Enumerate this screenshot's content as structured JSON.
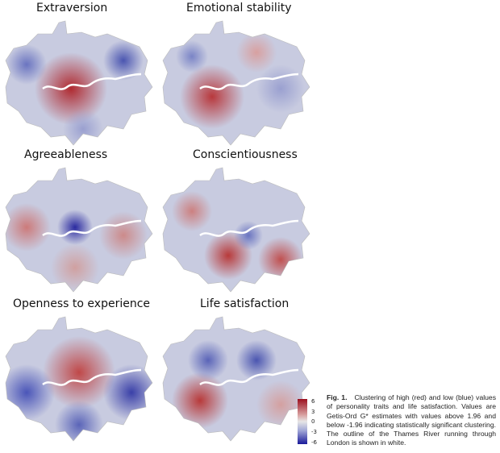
{
  "maps": [
    {
      "title": "Extraversion"
    },
    {
      "title": "Emotional stability"
    },
    {
      "title": "Agreeableness"
    },
    {
      "title": "Conscientiousness"
    },
    {
      "title": "Openness to experience"
    },
    {
      "title": "Life satisfaction"
    }
  ],
  "legend": {
    "ticks": [
      "6",
      "3",
      "0",
      "-3",
      "-6"
    ],
    "colors": {
      "high": "#9b0f1e",
      "mid": "#e6e6e6",
      "low": "#1a1a9a"
    }
  },
  "caption": {
    "label": "Fig. 1.",
    "text": "Clustering of high (red) and low (blue) values of personality traits and life satisfaction. Values are Getis-Ord G* estimates with values above 1.96 and below -1.96 indicating statistically significant clustering. The outline of the Thames River running through London is shown in white."
  },
  "river_color": "#ffffff"
}
